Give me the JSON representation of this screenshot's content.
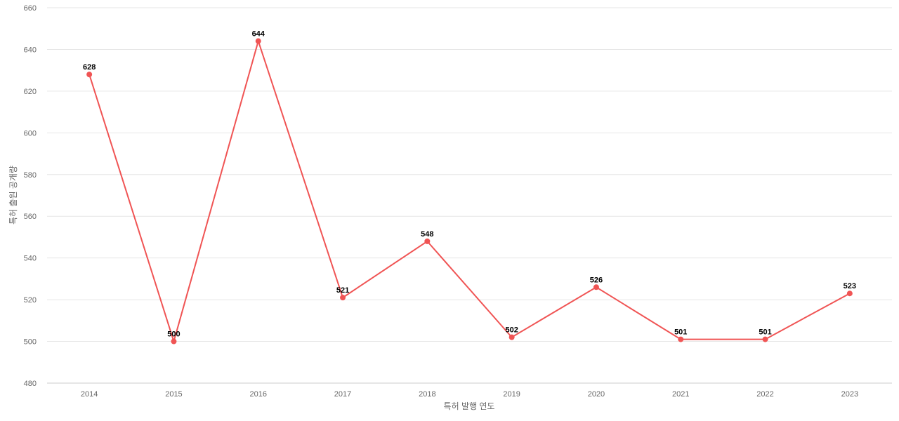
{
  "chart_data": {
    "type": "line",
    "title": "",
    "xlabel": "특허 발행 연도",
    "ylabel": "특허 출원 공개량",
    "categories": [
      "2014",
      "2015",
      "2016",
      "2017",
      "2018",
      "2019",
      "2020",
      "2021",
      "2022",
      "2023"
    ],
    "series": [
      {
        "values": [
          628,
          500,
          644,
          521,
          548,
          502,
          526,
          501,
          501,
          523
        ]
      }
    ],
    "ylim": [
      480,
      660
    ],
    "yticks": [
      480,
      500,
      520,
      540,
      560,
      580,
      600,
      620,
      640,
      660
    ],
    "grid": true,
    "legend": "none",
    "colors": {
      "line": "#f05454",
      "grid": "#e6e6e6",
      "axis": "#cccccc",
      "tick_text": "#666666",
      "label_text": "#000000"
    }
  }
}
